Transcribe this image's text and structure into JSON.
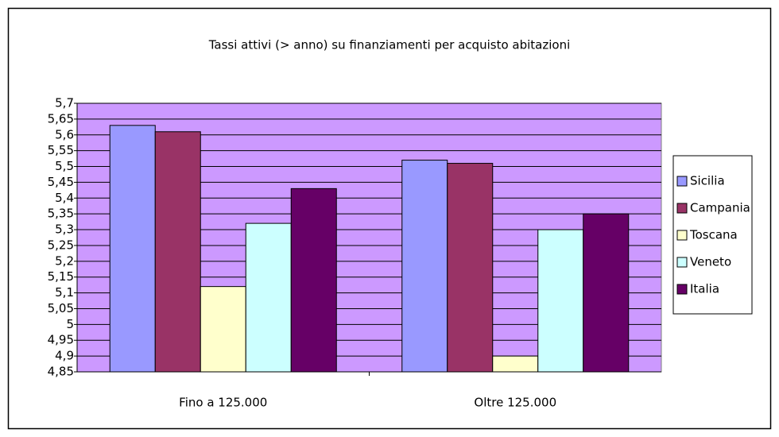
{
  "chart_data": {
    "type": "bar",
    "title": "Tassi attivi (> anno) su finanziamenti per acquisto abitazioni",
    "categories": [
      "Fino a 125.000",
      "Oltre 125.000"
    ],
    "series": [
      {
        "name": "Sicilia",
        "color": "#9999ff",
        "values": [
          5.63,
          5.52
        ]
      },
      {
        "name": "Campania",
        "color": "#993366",
        "values": [
          5.61,
          5.51
        ]
      },
      {
        "name": "Toscana",
        "color": "#ffffcc",
        "values": [
          5.12,
          4.9
        ]
      },
      {
        "name": "Veneto",
        "color": "#ccffff",
        "values": [
          5.32,
          5.3
        ]
      },
      {
        "name": "Italia",
        "color": "#660066",
        "values": [
          5.43,
          5.35
        ]
      }
    ],
    "ylim": [
      4.85,
      5.7
    ],
    "yticks": [
      {
        "value": 5.7,
        "label": "5,7"
      },
      {
        "value": 5.65,
        "label": "5,65"
      },
      {
        "value": 5.6,
        "label": "5,6"
      },
      {
        "value": 5.55,
        "label": "5,55"
      },
      {
        "value": 5.5,
        "label": "5,5"
      },
      {
        "value": 5.45,
        "label": "5,45"
      },
      {
        "value": 5.4,
        "label": "5,4"
      },
      {
        "value": 5.35,
        "label": "5,35"
      },
      {
        "value": 5.3,
        "label": "5,3"
      },
      {
        "value": 5.25,
        "label": "5,25"
      },
      {
        "value": 5.2,
        "label": "5,2"
      },
      {
        "value": 5.15,
        "label": "5,15"
      },
      {
        "value": 5.1,
        "label": "5,1"
      },
      {
        "value": 5.05,
        "label": "5,05"
      },
      5,
      {
        "value": 4.95,
        "label": "4,95"
      },
      {
        "value": 4.9,
        "label": "4,9"
      },
      {
        "value": 4.85,
        "label": "4,85"
      }
    ],
    "grid": true,
    "plot_background": "#cc99ff",
    "legend": "right"
  }
}
